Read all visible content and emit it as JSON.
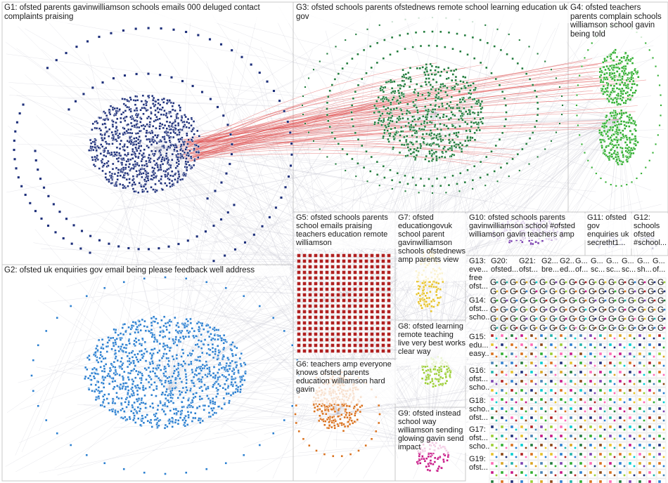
{
  "groups": [
    {
      "id": "G1",
      "label": "G1: ofsted parents gavinwilliamson schools emails 000 deluged contact complaints praising",
      "color": "#1d2f7a"
    },
    {
      "id": "G2",
      "label": "G2: ofsted uk enquiries gov email being please feedback well address",
      "color": "#2b7fd0"
    },
    {
      "id": "G3",
      "label": "G3: ofsted schools parents ofstednews remote school learning education uk gov",
      "color": "#1f7a3a"
    },
    {
      "id": "G4",
      "label": "G4: ofsted teachers parents complain schools williamson school gavin being told",
      "color": "#2fae2f"
    },
    {
      "id": "G5",
      "label": "G5: ofsted schools parents school emails praising teachers education remote williamson",
      "color": "#b02020"
    },
    {
      "id": "G6",
      "label": "G6: teachers amp everyone knows ofsted parents education williamson hard gavin",
      "color": "#d9701c"
    },
    {
      "id": "G7",
      "label": "G7: ofsted educationgovuk school parent gavinwilliamson schools ofstednews amp parents view",
      "color": "#e6c229"
    },
    {
      "id": "G8",
      "label": "G8: ofsted learning remote teaching live very best works clear way",
      "color": "#9acd32"
    },
    {
      "id": "G9",
      "label": "G9: ofsted instead school way williamson sending glowing gavin send impact",
      "color": "#c71585"
    },
    {
      "id": "G10",
      "label": "G10: ofsted schools parents gavinwilliamson school #ofsted williamson gavin teachers amp",
      "color": "#7a40b0"
    },
    {
      "id": "G11",
      "label": "G11: ofsted gov enquiries uk secretht1...",
      "color": "#8888cc"
    },
    {
      "id": "G12",
      "label": "G12: schools ofsted #school...",
      "color": "#666699"
    },
    {
      "id": "G13",
      "label": "G13: eve... free ofst...",
      "color": "#888888"
    },
    {
      "id": "G14",
      "label": "G14: ofst... scho...",
      "color": "#888888"
    },
    {
      "id": "G15",
      "label": "G15: edu... easy...",
      "color": "#888888"
    },
    {
      "id": "G16",
      "label": "G16: ofst... scho...",
      "color": "#888888"
    },
    {
      "id": "G17",
      "label": "G17: ofst... scho...",
      "color": "#888888"
    },
    {
      "id": "G18",
      "label": "G18: scho... ofst...",
      "color": "#888888"
    },
    {
      "id": "G19",
      "label": "G19: ofst...",
      "color": "#888888"
    },
    {
      "id": "G20",
      "label": "G20: ofsted...",
      "color": "#888888"
    },
    {
      "id": "G21",
      "label": "G21: ofst...",
      "color": "#888888"
    },
    {
      "id": "G22",
      "label": "G2... bre...",
      "color": "#888888"
    },
    {
      "id": "G23",
      "label": "G2... ed...",
      "color": "#888888"
    }
  ],
  "small_group_tiles": [
    {
      "label": "G... of..."
    },
    {
      "label": "G... sc..."
    },
    {
      "label": "G... sc..."
    },
    {
      "label": "G... sc..."
    },
    {
      "label": "G... sh..."
    },
    {
      "label": "G... of..."
    }
  ],
  "glyph": "G",
  "palette": [
    "#1d2f7a",
    "#2b7fd0",
    "#1f7a3a",
    "#2fae2f",
    "#b02020",
    "#d9701c",
    "#e6c229",
    "#9acd32",
    "#c71585",
    "#7a40b0",
    "#20b2aa",
    "#ff69b4",
    "#4682b4",
    "#daa520",
    "#8b4513",
    "#00ced1"
  ]
}
